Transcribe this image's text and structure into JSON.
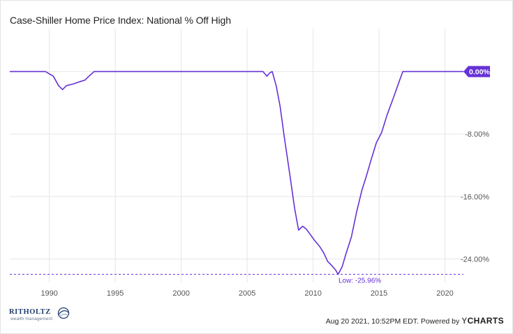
{
  "title": "Case-Shiller Home Price Index: National % Off High",
  "colors": {
    "series": "#6631d7",
    "grid": "#e6e6e6",
    "axis_text": "#555555",
    "badge_text": "#ffffff"
  },
  "footer": {
    "brand_name": "RITHOLTZ",
    "brand_sub": "wealth management",
    "timestamp": "Aug 20 2021, 10:52PM EDT.",
    "powered_by": "Powered by",
    "provider_mark": "Y",
    "provider_name": "CHARTS"
  },
  "chart_data": {
    "type": "line",
    "title": "Case-Shiller Home Price Index: National % Off High",
    "xlabel": "",
    "ylabel": "",
    "x_ticks": [
      "1990",
      "1995",
      "2000",
      "2005",
      "2010",
      "2015",
      "2020"
    ],
    "y_ticks": [
      "0.00%",
      "-8.00%",
      "-16.00%",
      "-24.00%"
    ],
    "x_range": [
      1987.0,
      2021.4
    ],
    "y_range": [
      -27.0,
      5.5
    ],
    "vertical_grid": true,
    "horizontal_grid": true,
    "legend": "none",
    "last_value_label": "0.00%",
    "low_label": "Low: -25.96%",
    "low_value": -25.96,
    "series": [
      {
        "color": "#6631d7",
        "points": [
          [
            1987.0,
            0.0
          ],
          [
            1989.7,
            0.0
          ],
          [
            1990.3,
            -0.6
          ],
          [
            1990.7,
            -1.8
          ],
          [
            1991.0,
            -2.3
          ],
          [
            1991.3,
            -1.8
          ],
          [
            1991.8,
            -1.6
          ],
          [
            1992.3,
            -1.3
          ],
          [
            1992.7,
            -1.1
          ],
          [
            1993.0,
            -0.6
          ],
          [
            1993.4,
            0.0
          ],
          [
            1995.0,
            0.0
          ],
          [
            2000.0,
            0.0
          ],
          [
            2005.0,
            0.0
          ],
          [
            2006.2,
            0.0
          ],
          [
            2006.5,
            -0.6
          ],
          [
            2006.7,
            -0.2
          ],
          [
            2006.9,
            0.0
          ],
          [
            2007.2,
            -1.8
          ],
          [
            2007.5,
            -4.5
          ],
          [
            2007.8,
            -8.2
          ],
          [
            2008.2,
            -12.8
          ],
          [
            2008.6,
            -17.5
          ],
          [
            2008.9,
            -20.3
          ],
          [
            2009.2,
            -19.8
          ],
          [
            2009.5,
            -20.2
          ],
          [
            2009.8,
            -20.9
          ],
          [
            2010.1,
            -21.6
          ],
          [
            2010.5,
            -22.4
          ],
          [
            2010.8,
            -23.2
          ],
          [
            2011.1,
            -24.3
          ],
          [
            2011.4,
            -24.8
          ],
          [
            2011.7,
            -25.4
          ],
          [
            2011.9,
            -25.96
          ],
          [
            2012.2,
            -25.0
          ],
          [
            2012.5,
            -23.3
          ],
          [
            2012.9,
            -21.2
          ],
          [
            2013.3,
            -18.0
          ],
          [
            2013.7,
            -15.2
          ],
          [
            2014.0,
            -13.6
          ],
          [
            2014.4,
            -11.3
          ],
          [
            2014.8,
            -9.1
          ],
          [
            2015.2,
            -7.8
          ],
          [
            2015.6,
            -5.6
          ],
          [
            2016.1,
            -3.3
          ],
          [
            2016.5,
            -1.4
          ],
          [
            2016.8,
            0.0
          ],
          [
            2018.0,
            0.0
          ],
          [
            2020.0,
            0.0
          ],
          [
            2021.4,
            0.0
          ]
        ]
      }
    ]
  }
}
